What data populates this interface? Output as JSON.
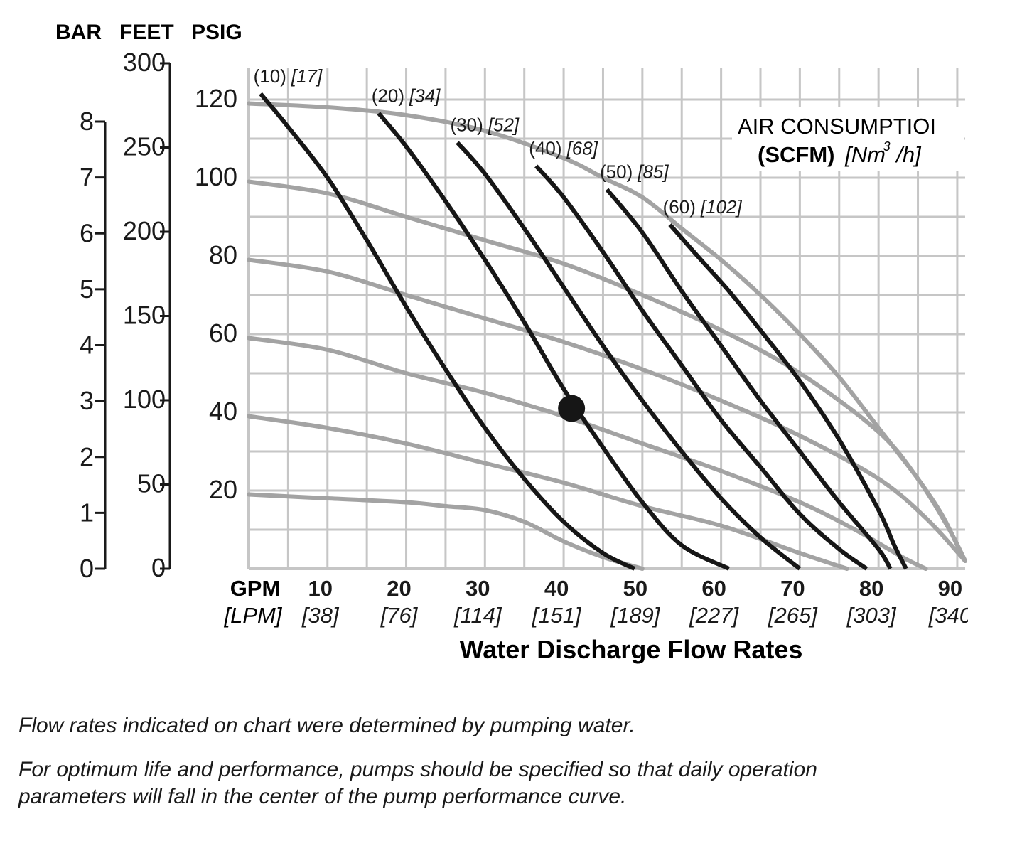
{
  "chart_data": {
    "type": "line",
    "title": "",
    "y_unit_headers": [
      "BAR",
      "FEET",
      "PSIG"
    ],
    "axes": {
      "bar": {
        "ticks": [
          "0",
          "1",
          "2",
          "3",
          "4",
          "5",
          "6",
          "7",
          "8"
        ],
        "range": [
          0,
          8.14
        ]
      },
      "feet": {
        "ticks": [
          "0",
          "50",
          "100",
          "150",
          "200",
          "250",
          "300"
        ],
        "range": [
          0,
          300
        ]
      },
      "psig": {
        "ticks": [
          "20",
          "40",
          "60",
          "80",
          "100",
          "120"
        ],
        "range": [
          0,
          128
        ]
      },
      "x": {
        "unit_label": "GPM",
        "unit_label_alt": "[LPM]",
        "ticks": [
          "10",
          "20",
          "30",
          "40",
          "50",
          "60",
          "70",
          "80",
          "90"
        ],
        "ticks_alt": [
          "[38]",
          "[76]",
          "[114]",
          "[151]",
          "[189]",
          "[227]",
          "[265]",
          "[303]",
          "[340"
        ],
        "range": [
          0,
          91
        ]
      }
    },
    "xlabel": "Water Discharge Flow Rates",
    "grid": true,
    "legend_title": "AIR CONSUMPTION",
    "legend_title_shown": "AIR CONSUMPTIOI",
    "legend_units_bold": "(SCFM)",
    "legend_units_italic_pre": "[Nm",
    "legend_units_sup": "3",
    "legend_units_italic_post": "/h]",
    "air_curves": [
      {
        "scfm": "(10)",
        "nm3h": "[17]",
        "points": [
          [
            1.5,
            121.5
          ],
          [
            5,
            113
          ],
          [
            10,
            100
          ],
          [
            15,
            84
          ],
          [
            20,
            67
          ],
          [
            25,
            51
          ],
          [
            30,
            36
          ],
          [
            35,
            23
          ],
          [
            40,
            12
          ],
          [
            45,
            4
          ],
          [
            49,
            0
          ]
        ]
      },
      {
        "scfm": "(20)",
        "nm3h": "[34]",
        "points": [
          [
            16.5,
            116.5
          ],
          [
            20,
            108
          ],
          [
            25,
            94
          ],
          [
            30,
            79
          ],
          [
            35,
            63
          ],
          [
            40,
            46
          ],
          [
            45,
            31
          ],
          [
            50,
            17
          ],
          [
            55,
            6
          ],
          [
            61,
            0
          ]
        ]
      },
      {
        "scfm": "(30)",
        "nm3h": "[52]",
        "points": [
          [
            26.5,
            109
          ],
          [
            30,
            101
          ],
          [
            35,
            87
          ],
          [
            40,
            72
          ],
          [
            45,
            57
          ],
          [
            50,
            43
          ],
          [
            55,
            30
          ],
          [
            60,
            18
          ],
          [
            65,
            8
          ],
          [
            70,
            0
          ]
        ]
      },
      {
        "scfm": "(40)",
        "nm3h": "[68]",
        "points": [
          [
            36.5,
            103
          ],
          [
            40,
            95
          ],
          [
            45,
            81
          ],
          [
            50,
            66
          ],
          [
            55,
            52
          ],
          [
            60,
            38
          ],
          [
            65,
            26
          ],
          [
            70,
            14
          ],
          [
            75,
            5
          ],
          [
            78.5,
            0
          ]
        ]
      },
      {
        "scfm": "(50)",
        "nm3h": "[85]",
        "points": [
          [
            45.5,
            97
          ],
          [
            50,
            86
          ],
          [
            55,
            71
          ],
          [
            60,
            57
          ],
          [
            65,
            43
          ],
          [
            70,
            30
          ],
          [
            75,
            17
          ],
          [
            80,
            5
          ],
          [
            81.5,
            0
          ]
        ]
      },
      {
        "scfm": "(60)",
        "nm3h": "[102]",
        "points": [
          [
            53.5,
            88
          ],
          [
            57,
            80
          ],
          [
            61,
            71
          ],
          [
            65,
            61
          ],
          [
            70,
            48
          ],
          [
            75,
            33
          ],
          [
            80,
            15
          ],
          [
            82,
            6
          ],
          [
            83.5,
            0
          ]
        ]
      }
    ],
    "head_curves": [
      {
        "points": [
          [
            0,
            119
          ],
          [
            10,
            118
          ],
          [
            20,
            116
          ],
          [
            30,
            112
          ],
          [
            40,
            105
          ],
          [
            45,
            100
          ],
          [
            50,
            95
          ],
          [
            55,
            87
          ],
          [
            60,
            79
          ],
          [
            65,
            70
          ],
          [
            70,
            60
          ],
          [
            75,
            49
          ],
          [
            80,
            36
          ],
          [
            85,
            23
          ],
          [
            88,
            14
          ],
          [
            90,
            6
          ],
          [
            91,
            2
          ]
        ]
      },
      {
        "points": [
          [
            0,
            99
          ],
          [
            10,
            96
          ],
          [
            20,
            90
          ],
          [
            30,
            84
          ],
          [
            40,
            78
          ],
          [
            50,
            70
          ],
          [
            60,
            61
          ],
          [
            70,
            50
          ],
          [
            80,
            35
          ],
          [
            85,
            23
          ],
          [
            89,
            10
          ],
          [
            91,
            2
          ]
        ]
      },
      {
        "points": [
          [
            0,
            79
          ],
          [
            10,
            76
          ],
          [
            20,
            70
          ],
          [
            30,
            64
          ],
          [
            40,
            58
          ],
          [
            50,
            51
          ],
          [
            60,
            43
          ],
          [
            70,
            34
          ],
          [
            80,
            23
          ],
          [
            86,
            13
          ],
          [
            91,
            2
          ]
        ]
      },
      {
        "points": [
          [
            0,
            59
          ],
          [
            10,
            56
          ],
          [
            20,
            50
          ],
          [
            30,
            45
          ],
          [
            40,
            39
          ],
          [
            50,
            32
          ],
          [
            60,
            25
          ],
          [
            70,
            17
          ],
          [
            77,
            10
          ],
          [
            83,
            3
          ],
          [
            86,
            0
          ]
        ]
      },
      {
        "points": [
          [
            0,
            39
          ],
          [
            10,
            36
          ],
          [
            20,
            32
          ],
          [
            30,
            27
          ],
          [
            40,
            22
          ],
          [
            50,
            16
          ],
          [
            60,
            11
          ],
          [
            70,
            4
          ],
          [
            76,
            0
          ]
        ]
      },
      {
        "points": [
          [
            0,
            19
          ],
          [
            10,
            18
          ],
          [
            20,
            17
          ],
          [
            25,
            16
          ],
          [
            30,
            15
          ],
          [
            35,
            12
          ],
          [
            40,
            7
          ],
          [
            45,
            3
          ],
          [
            50,
            0
          ]
        ]
      }
    ],
    "operating_point": {
      "gpm": 41,
      "psig": 41
    },
    "colors": {
      "air_curve": "#161616",
      "head_curve": "#a3a3a3",
      "grid": "#c6c6c6",
      "text": "#1a1a1a"
    }
  },
  "notes": [
    "Flow rates indicated on chart were determined by pumping water.",
    "For optimum life and performance, pumps should be specified so that daily operation",
    "parameters will fall in the center of the pump performance curve."
  ]
}
